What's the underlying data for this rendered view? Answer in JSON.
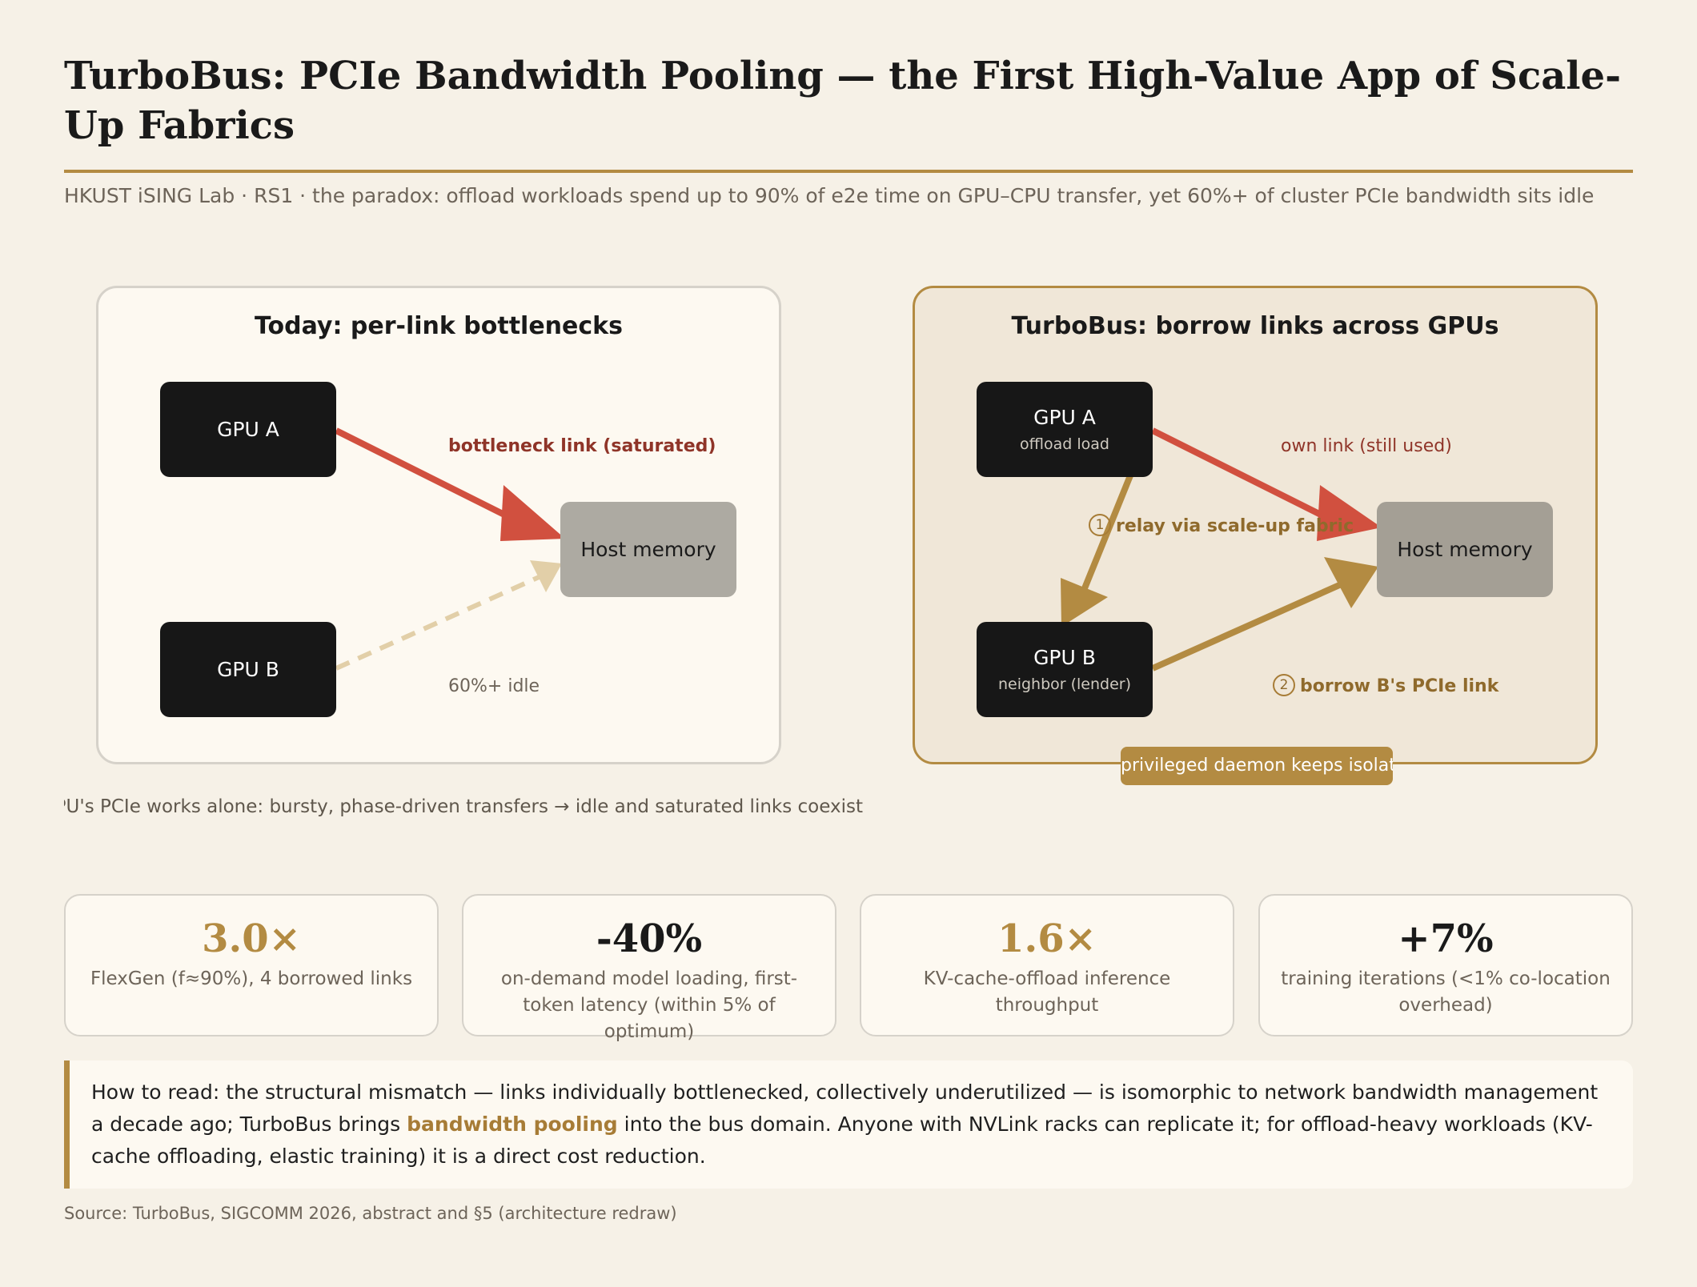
{
  "header": {
    "title": "TurboBus: PCIe Bandwidth Pooling — the First High-Value App of Scale-Up Fabrics",
    "subtitle": "HKUST iSING Lab · RS1 · the paradox: offload workloads spend up to 90% of e2e time on GPU–CPU transfer, yet 60%+ of cluster PCIe bandwidth sits idle"
  },
  "left_panel": {
    "title": "Today: per-link bottlenecks",
    "gpu_a": "GPU A",
    "gpu_b": "GPU B",
    "host": "Host memory",
    "edge_saturated": "bottleneck link (saturated)",
    "edge_idle": "60%+ idle",
    "caption": "Each GPU's PCIe works alone: bursty, phase-driven transfers → idle and saturated links coexist"
  },
  "right_panel": {
    "title": "TurboBus: borrow links across GPUs",
    "gpu_a": "GPU A",
    "gpu_a_sub": "offload load",
    "gpu_b": "GPU B",
    "gpu_b_sub": "neighbor (lender)",
    "host": "Host memory",
    "edge_own": "own link (still used)",
    "step1_num": "1",
    "edge_relay": "relay via scale-up fabric",
    "step2_num": "2",
    "edge_borrow": "borrow B's PCIe link",
    "daemon": "privileged daemon keeps isolation"
  },
  "stats": [
    {
      "value": "3.0×",
      "desc": "FlexGen (f≈90%), 4 borrowed links"
    },
    {
      "value": "-40%",
      "desc": "on-demand model loading, first-token latency (within 5% of optimum)"
    },
    {
      "value": "1.6×",
      "desc": "KV-cache-offload inference throughput"
    },
    {
      "value": "+7%",
      "desc": "training iterations (<1% co-location overhead)"
    }
  ],
  "howto": {
    "before": "How to read: the structural mismatch — links individually bottlenecked, collectively underutilized — is isomorphic to network bandwidth management a decade ago; TurboBus brings ",
    "highlight": "bandwidth pooling",
    "after": " into the bus domain. Anyone with NVLink racks can replicate it; for offload-heavy workloads (KV-cache offloading, elastic training) it is a direct cost reduction."
  },
  "source": "Source: TurboBus, SIGCOMM 2026, abstract and §5 (architecture redraw)",
  "colors": {
    "background": "#f6f1e7",
    "accent_gold": "#b38b42",
    "saturated_red": "#d1503f",
    "idle_beige": "#e2cfa8",
    "gpu_black": "#171717",
    "host_gray": "#adaaa2"
  }
}
